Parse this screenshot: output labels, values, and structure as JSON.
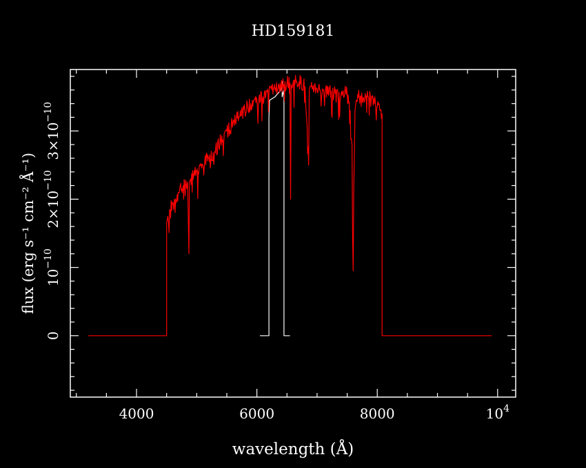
{
  "chart_data": {
    "type": "line",
    "title": "HD159181",
    "xlabel": "wavelength (Å)",
    "ylabel": "flux (erg s⁻¹ cm⁻² Å⁻¹)",
    "xlim": [
      2900,
      10300
    ],
    "ylim": [
      -9e-11,
      3.9e-10
    ],
    "xticks": [
      {
        "value": 4000,
        "label": "4000"
      },
      {
        "value": 6000,
        "label": "6000"
      },
      {
        "value": 8000,
        "label": "8000"
      },
      {
        "value": 10000,
        "label": "10",
        "exponent": "4"
      }
    ],
    "yticks": [
      {
        "value": 0,
        "label": "0"
      },
      {
        "value": 1e-10,
        "label": "10",
        "exponent": "−10"
      },
      {
        "value": 2e-10,
        "label": "2×10",
        "exponent": "−10"
      },
      {
        "value": 3e-10,
        "label": "3×10",
        "exponent": "−10"
      }
    ],
    "series": [
      {
        "color": "#ffffff",
        "x": [
          6050,
          6200,
          6200,
          6210,
          6300,
          6400,
          6420,
          6420,
          6450,
          6450,
          6550
        ],
        "y": [
          0,
          0,
          3.2e-10,
          3.45e-10,
          3.5e-10,
          3.6e-10,
          3.72e-10,
          3.5e-10,
          3.6e-10,
          0,
          0
        ]
      },
      {
        "color": "#ff0000",
        "x": [
          3200,
          4500,
          4500,
          4520,
          4550,
          4600,
          4650,
          4700,
          4750,
          4800,
          4850,
          4870,
          4880,
          4900,
          4950,
          5000,
          5100,
          5200,
          5300,
          5400,
          5500,
          5600,
          5700,
          5800,
          5900,
          5950,
          6000,
          6100,
          6150,
          6200,
          6250,
          6300,
          6350,
          6400,
          6450,
          6500,
          6550,
          6560,
          6570,
          6600,
          6650,
          6700,
          6800,
          6860,
          6870,
          6880,
          6900,
          7000,
          7100,
          7200,
          7300,
          7400,
          7500,
          7550,
          7580,
          7590,
          7600,
          7610,
          7620,
          7630,
          7650,
          7700,
          7750,
          7800,
          7850,
          7900,
          7950,
          8000,
          8050,
          8080,
          8080,
          9900
        ],
        "y": [
          0,
          0,
          1.65e-10,
          1.75e-10,
          1.85e-10,
          1.95e-10,
          2e-10,
          2.1e-10,
          2.15e-10,
          2.2e-10,
          2.25e-10,
          1.2e-10,
          2.25e-10,
          2.3e-10,
          2.35e-10,
          2.4e-10,
          2.5e-10,
          2.6e-10,
          2.7e-10,
          2.85e-10,
          3e-10,
          3.1e-10,
          3.2e-10,
          3.3e-10,
          3.4e-10,
          3.45e-10,
          3.45e-10,
          3.5e-10,
          3.52e-10,
          3.55e-10,
          3.6e-10,
          3.6e-10,
          3.62e-10,
          3.65e-10,
          3.68e-10,
          3.7e-10,
          3.7e-10,
          2e-10,
          3.68e-10,
          3.7e-10,
          3.72e-10,
          3.72e-10,
          3.65e-10,
          2.5e-10,
          3.6e-10,
          3.65e-10,
          3.65e-10,
          3.62e-10,
          3.6e-10,
          3.58e-10,
          3.55e-10,
          3.55e-10,
          3.55e-10,
          3.3e-10,
          2.8e-10,
          1.5e-10,
          9.5e-11,
          2.2e-10,
          2.6e-10,
          3.3e-10,
          3.45e-10,
          3.5e-10,
          3.45e-10,
          3.55e-10,
          3.5e-10,
          3.45e-10,
          3.4e-10,
          3.35e-10,
          3.3e-10,
          3.25e-10,
          0,
          0
        ]
      }
    ]
  }
}
